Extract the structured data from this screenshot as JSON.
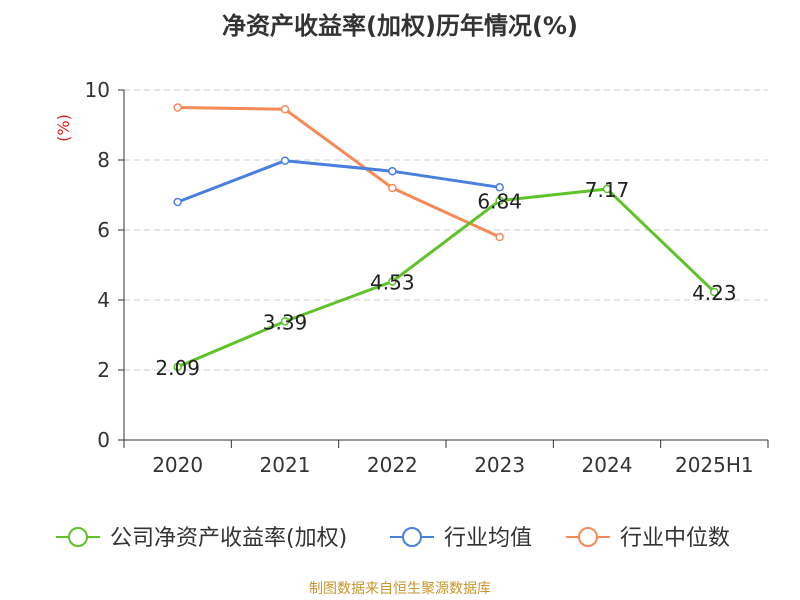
{
  "chart_data": {
    "type": "line",
    "title": "净资产收益率(加权)历年情况(%)",
    "ylabel": "(%)",
    "categories": [
      "2020",
      "2021",
      "2022",
      "2023",
      "2024",
      "2025H1"
    ],
    "ylim": [
      0,
      10
    ],
    "yticks": [
      0,
      2,
      4,
      6,
      8,
      10
    ],
    "grid": true,
    "legend_position": "bottom",
    "series": [
      {
        "name": "公司净资产收益率(加权)",
        "color": "#5ec228",
        "values": [
          2.09,
          3.39,
          4.53,
          6.84,
          7.17,
          4.23
        ],
        "labels": [
          "2.09",
          "3.39",
          "4.53",
          "6.84",
          "7.17",
          "4.23"
        ]
      },
      {
        "name": "行业均值",
        "color": "#4a7fe0",
        "values": [
          6.8,
          7.98,
          7.68,
          7.22,
          null,
          null
        ]
      },
      {
        "name": "行业中位数",
        "color": "#f58a58",
        "values": [
          9.5,
          9.45,
          7.2,
          5.8,
          null,
          null
        ]
      }
    ]
  },
  "source": "制图数据来自恒生聚源数据库",
  "colors": {
    "title": "#333333",
    "ylabel": "#e0201c",
    "source": "#c8962c",
    "axis": "#333333",
    "grid": "#cccccc"
  }
}
